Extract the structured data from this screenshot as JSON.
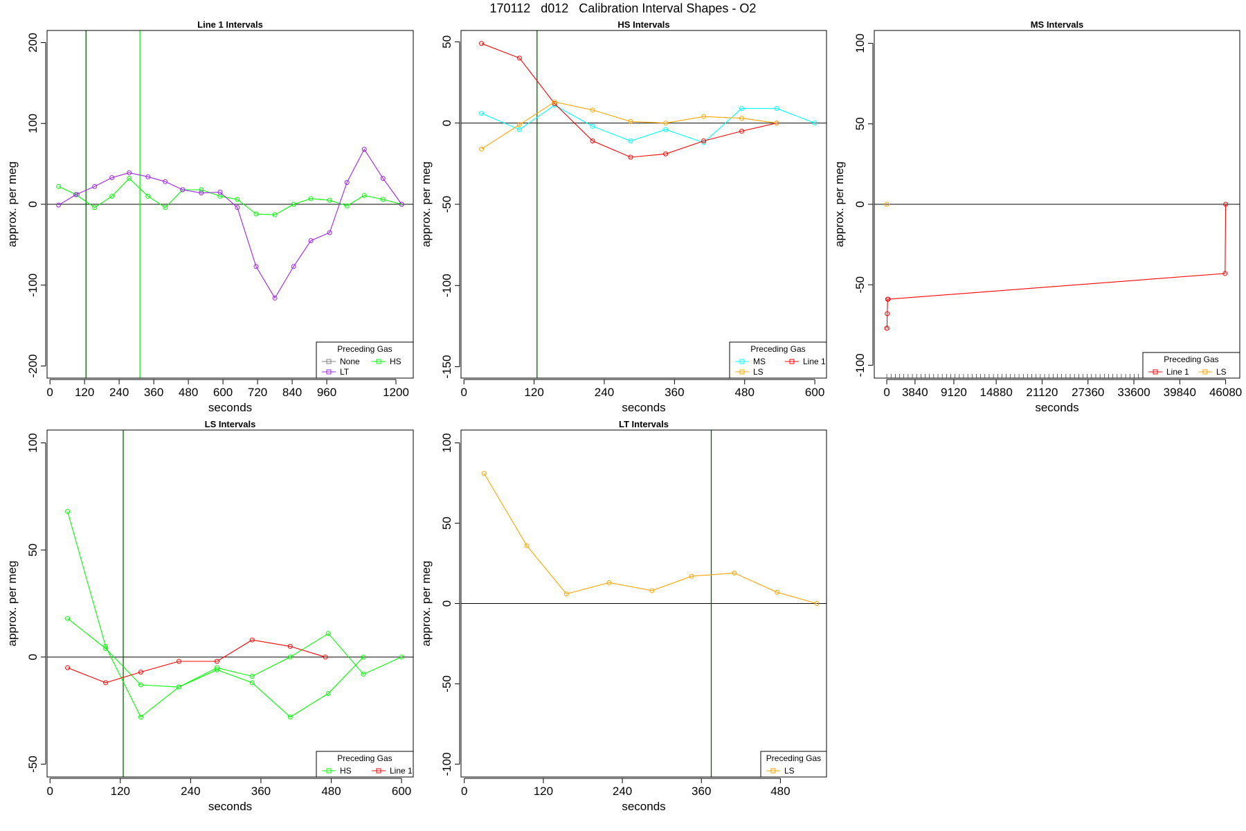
{
  "title": "170112   d012   Calibration Interval Shapes - O2",
  "chart_data": [
    {
      "type": "line",
      "title": "Line 1 Intervals",
      "xlabel": "seconds",
      "ylabel": "approx. per meg",
      "xlim": [
        -10,
        1260
      ],
      "ylim": [
        -215,
        215
      ],
      "xticks": [
        0,
        120,
        240,
        360,
        480,
        600,
        720,
        840,
        960,
        1200
      ],
      "yticks": [
        -200,
        -100,
        0,
        100,
        200
      ],
      "vlines": [
        {
          "x": 125,
          "color": "#006400"
        },
        {
          "x": 312,
          "color": "#00ff00"
        }
      ],
      "legend": {
        "title": "Preceding Gas",
        "position": "bottom-right",
        "columns": 2
      },
      "series": [
        {
          "name": "None",
          "color": "#808080",
          "x": [
            95
          ],
          "y": [
            12
          ]
        },
        {
          "name": "HS",
          "color": "#00ff00",
          "x": [
            30,
            90,
            155,
            215,
            275,
            340,
            400,
            460,
            525,
            590,
            650,
            715,
            780,
            845,
            905,
            970,
            1030,
            1090,
            1155,
            1220
          ],
          "y": [
            22,
            12,
            -4,
            10,
            32,
            10,
            -4,
            18,
            18,
            10,
            6,
            -12,
            -13,
            0,
            7,
            5,
            -2,
            11,
            6,
            0
          ]
        },
        {
          "name": "LT",
          "color": "#a020f0",
          "x": [
            30,
            90,
            155,
            215,
            275,
            340,
            400,
            460,
            525,
            590,
            650,
            715,
            780,
            845,
            905,
            970,
            1030,
            1090,
            1155,
            1220
          ],
          "y": [
            -1,
            12,
            22,
            33,
            39,
            34,
            28,
            18,
            14,
            15,
            -4,
            -77,
            -116,
            -77,
            -45,
            -35,
            27,
            68,
            32,
            0
          ]
        }
      ]
    },
    {
      "type": "line",
      "title": "HS Intervals",
      "xlabel": "seconds",
      "ylabel": "approx. per meg",
      "xlim": [
        -5,
        620
      ],
      "ylim": [
        -157,
        57
      ],
      "xticks": [
        0,
        120,
        240,
        360,
        480,
        600
      ],
      "yticks": [
        -150,
        -100,
        -50,
        0,
        50
      ],
      "vlines": [
        {
          "x": 125,
          "color": "#006400"
        }
      ],
      "legend": {
        "title": "Preceding Gas",
        "position": "bottom-right",
        "columns": 2
      },
      "series": [
        {
          "name": "MS",
          "color": "#00ffff",
          "x": [
            30,
            95,
            155,
            220,
            285,
            345,
            410,
            475,
            535,
            600
          ],
          "y": [
            6,
            -4,
            11,
            -2,
            -11,
            -4,
            -12,
            9,
            9,
            0
          ]
        },
        {
          "name": "Line 1",
          "color": "#ff0000",
          "x": [
            30,
            95,
            155,
            220,
            285,
            345,
            410,
            475,
            535
          ],
          "y": [
            49,
            40,
            12,
            -11,
            -21,
            -19,
            -11,
            -5,
            0
          ]
        },
        {
          "name": "LS",
          "color": "#ffa500",
          "x": [
            30,
            95,
            155,
            220,
            285,
            345,
            410,
            475,
            535
          ],
          "y": [
            -16,
            -1,
            13,
            8,
            1,
            0,
            4,
            3,
            0
          ]
        }
      ]
    },
    {
      "type": "line",
      "title": "MS Intervals",
      "xlabel": "seconds",
      "ylabel": "approx. per meg",
      "xlim": [
        -1700,
        48000
      ],
      "ylim": [
        -108,
        108
      ],
      "xticks": [
        0,
        3840,
        9120,
        14880,
        21120,
        27360,
        33600,
        39840,
        46080
      ],
      "yticks": [
        -100,
        -50,
        0,
        50,
        100
      ],
      "rug": true,
      "legend": {
        "title": "Preceding Gas",
        "position": "bottom-right",
        "columns": 2
      },
      "series": [
        {
          "name": "Line 1",
          "color": "#ff0000",
          "x": [
            0,
            30,
            60,
            120,
            180,
            46000,
            46080
          ],
          "y": [
            -77,
            -77,
            -68,
            -59,
            -59,
            -43,
            0
          ]
        },
        {
          "name": "LS",
          "color": "#ffa500",
          "x": [
            0
          ],
          "y": [
            0
          ]
        }
      ]
    },
    {
      "type": "line",
      "title": "LS Intervals",
      "xlabel": "seconds",
      "ylabel": "approx. per meg",
      "xlim": [
        -5,
        620
      ],
      "ylim": [
        -56,
        106
      ],
      "xticks": [
        0,
        120,
        240,
        360,
        480,
        600
      ],
      "yticks": [
        -50,
        0,
        50,
        100
      ],
      "vlines": [
        {
          "x": 125,
          "color": "#006400"
        }
      ],
      "legend": {
        "title": "Preceding Gas",
        "position": "bottom-right",
        "columns": 2
      },
      "series": [
        {
          "name": "HS",
          "color": "#00ff00",
          "x": [
            30,
            95,
            155,
            220,
            285,
            345,
            410,
            475,
            535
          ],
          "y": [
            68,
            5,
            -28,
            -14,
            -6,
            -12,
            -28,
            -17,
            0
          ]
        },
        {
          "name": "HS",
          "color": "#00ff00",
          "legend": false,
          "x": [
            30,
            95,
            155,
            220,
            285,
            345,
            410,
            475,
            535,
            600
          ],
          "y": [
            18,
            4,
            -13,
            -14,
            -5,
            -9,
            0,
            11,
            -8,
            0
          ]
        },
        {
          "name": "Line 1",
          "color": "#ff0000",
          "x": [
            30,
            95,
            155,
            220,
            285,
            345,
            410,
            470
          ],
          "y": [
            -5,
            -12,
            -7,
            -2,
            -2,
            8,
            5,
            0
          ]
        }
      ]
    },
    {
      "type": "line",
      "title": "LT Intervals",
      "xlabel": "seconds",
      "ylabel": "approx. per meg",
      "xlim": [
        -5,
        550
      ],
      "ylim": [
        -108,
        108
      ],
      "xticks": [
        0,
        120,
        240,
        360,
        480
      ],
      "yticks": [
        -100,
        -50,
        0,
        50,
        100
      ],
      "vlines": [
        {
          "x": 375,
          "color": "#006400"
        }
      ],
      "legend": {
        "title": "Preceding Gas",
        "position": "bottom-right",
        "columns": 1
      },
      "series": [
        {
          "name": "LS",
          "color": "#ffa500",
          "x": [
            30,
            95,
            155,
            220,
            285,
            345,
            410,
            475,
            535
          ],
          "y": [
            81,
            36,
            6,
            13,
            8,
            17,
            19,
            7,
            0
          ]
        }
      ]
    }
  ]
}
